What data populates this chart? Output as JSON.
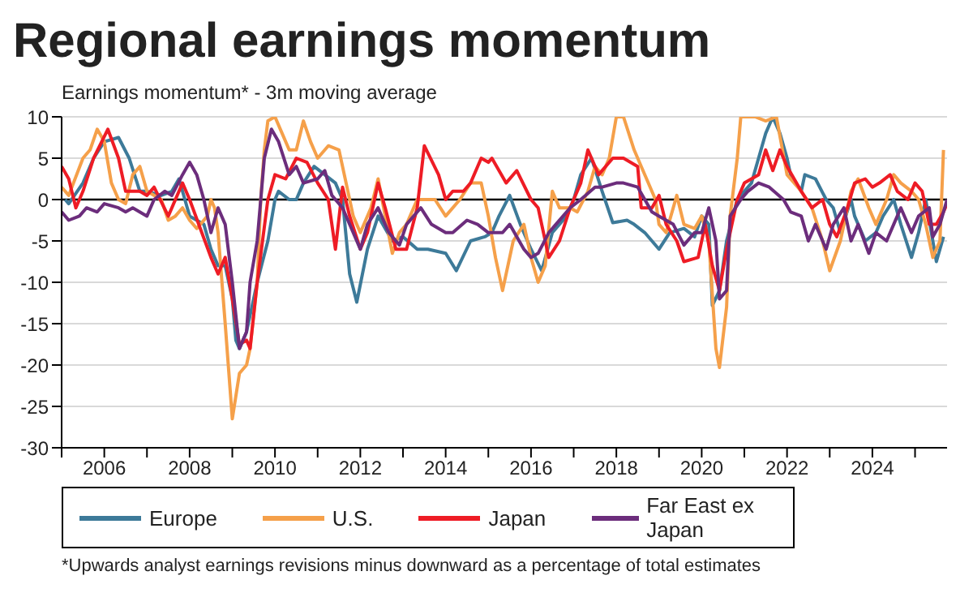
{
  "chart_data": {
    "type": "line",
    "title": "Regional earnings momentum",
    "subtitle": "Earnings momentum* - 3m moving average",
    "annotations": [
      "*Upwards analyst earnings revisions minus downward as a percentage of total estimates"
    ],
    "xlim": [
      "2005-01",
      "2025-10"
    ],
    "xticks": [
      {
        "value": "2005",
        "label": null
      },
      "2006",
      {
        "value": "2007",
        "label": null
      },
      "2008",
      {
        "value": "2009",
        "label": null
      },
      "2010",
      {
        "value": "2011",
        "label": null
      },
      "2012",
      {
        "value": "2013",
        "label": null
      },
      "2014",
      {
        "value": "2015",
        "label": null
      },
      "2016",
      {
        "value": "2017",
        "label": null
      },
      "2018",
      {
        "value": "2019",
        "label": null
      },
      "2020",
      {
        "value": "2021",
        "label": null
      },
      "2022",
      {
        "value": "2023",
        "label": null
      },
      "2024",
      {
        "value": "2025",
        "label": null
      }
    ],
    "ylim": [
      -30,
      10
    ],
    "yticks": [
      10,
      5,
      0,
      -5,
      -10,
      -15,
      -20,
      -25,
      -30
    ],
    "grid": "y",
    "legend": "bottom",
    "marker": "none",
    "line_style": "solid",
    "ref_lines": [
      {
        "axis": "y",
        "value": 0,
        "color": "#000000"
      }
    ],
    "series": [
      {
        "name": "Europe",
        "color": "#3d7a99",
        "x": [
          "2005-02",
          "2005-03",
          "2005-07",
          "2005-10",
          "2006-01",
          "2006-05",
          "2006-08",
          "2006-11",
          "2007-01",
          "2007-05",
          "2007-08",
          "2007-10",
          "2008-01",
          "2008-05",
          "2008-07",
          "2008-09",
          "2008-11",
          "2009-01",
          "2009-02",
          "2009-03",
          "2009-05",
          "2009-07",
          "2009-08",
          "2009-11",
          "2010-01",
          "2010-02",
          "2010-05",
          "2010-07",
          "2010-09",
          "2010-12",
          "2011-03",
          "2011-06",
          "2011-08",
          "2011-10",
          "2011-12",
          "2012-03",
          "2012-06",
          "2012-10",
          "2013-01",
          "2013-05",
          "2013-08",
          "2014-01",
          "2014-04",
          "2014-08",
          "2014-12",
          "2015-02",
          "2015-04",
          "2015-07",
          "2015-10",
          "2016-01",
          "2016-04",
          "2016-07",
          "2016-11",
          "2017-01",
          "2017-03",
          "2017-06",
          "2017-09",
          "2017-12",
          "2018-04",
          "2018-06",
          "2018-09",
          "2019-01",
          "2019-04",
          "2019-08",
          "2019-11",
          "2020-01",
          "2020-03",
          "2020-04",
          "2020-06",
          "2020-08",
          "2020-11",
          "2021-03",
          "2021-05",
          "2021-07",
          "2021-09",
          "2021-11",
          "2022-01",
          "2022-02",
          "2022-05",
          "2022-06",
          "2022-09",
          "2022-12",
          "2023-02",
          "2023-04",
          "2023-07",
          "2023-08",
          "2023-11",
          "2024-02",
          "2024-04",
          "2024-07",
          "2024-09",
          "2024-12",
          "2025-02",
          "2025-04",
          "2025-06",
          "2025-07",
          "2025-09"
        ],
        "values": [
          0,
          -0.5,
          2,
          5,
          7,
          7.5,
          5,
          1,
          1,
          0.5,
          1,
          2.5,
          -2,
          -3,
          -6,
          -8,
          -8,
          -12,
          -17,
          -18,
          -16,
          -12,
          -10,
          -5,
          0,
          1,
          0,
          0,
          2,
          4,
          3,
          2,
          0,
          -9,
          -12.4,
          -6,
          -2,
          -5,
          -4.5,
          -6,
          -6,
          -6.5,
          -8.6,
          -5,
          -4.5,
          -4,
          -2,
          0.5,
          -3,
          -6,
          -8.6,
          -4,
          -2,
          0,
          3,
          5,
          1,
          -2.8,
          -2.5,
          -3,
          -4,
          -6,
          -4,
          -3.5,
          -4.5,
          -2,
          -3,
          -12.8,
          -11,
          -5,
          0,
          2,
          5,
          8,
          10,
          8,
          5,
          3,
          1,
          3,
          2.5,
          0,
          -1,
          -4,
          0,
          -2,
          -5,
          -4,
          -2,
          0,
          -3,
          -7,
          -4,
          0,
          -5,
          -7.5,
          -4.5
        ]
      },
      {
        "name": "U.S.",
        "color": "#f5a04a",
        "x": [
          "2005-01",
          "2005-03",
          "2005-07",
          "2005-09",
          "2005-11",
          "2006-01",
          "2006-03",
          "2006-05",
          "2006-07",
          "2006-09",
          "2006-11",
          "2007-01",
          "2007-05",
          "2007-07",
          "2007-09",
          "2007-11",
          "2008-01",
          "2008-03",
          "2008-06",
          "2008-07",
          "2008-08",
          "2008-09",
          "2008-11",
          "2009-01",
          "2009-03",
          "2009-05",
          "2009-06",
          "2009-08",
          "2009-09",
          "2009-10",
          "2009-11",
          "2010-01",
          "2010-03",
          "2010-05",
          "2010-07",
          "2010-09",
          "2010-11",
          "2011-01",
          "2011-04",
          "2011-07",
          "2011-09",
          "2011-11",
          "2012-01",
          "2012-04",
          "2012-06",
          "2012-08",
          "2012-10",
          "2012-12",
          "2013-02",
          "2013-05",
          "2013-07",
          "2013-10",
          "2014-01",
          "2014-05",
          "2014-08",
          "2014-11",
          "2015-01",
          "2015-03",
          "2015-05",
          "2015-08",
          "2015-11",
          "2016-01",
          "2016-03",
          "2016-05",
          "2016-07",
          "2016-09",
          "2016-12",
          "2017-02",
          "2017-05",
          "2017-07",
          "2017-09",
          "2017-11",
          "2018-01",
          "2018-03",
          "2018-06",
          "2018-08",
          "2018-12",
          "2019-01",
          "2019-03",
          "2019-06",
          "2019-08",
          "2019-11",
          "2020-01",
          "2020-03",
          "2020-05",
          "2020-06",
          "2020-08",
          "2020-09",
          "2020-11",
          "2020-12",
          "2021-04",
          "2021-07",
          "2021-10",
          "2022-01",
          "2022-05",
          "2022-08",
          "2022-11",
          "2023-01",
          "2023-04",
          "2023-07",
          "2023-09",
          "2023-12",
          "2024-02",
          "2024-05",
          "2024-07",
          "2024-09",
          "2024-12",
          "2025-02",
          "2025-04",
          "2025-06",
          "2025-08",
          "2025-09"
        ],
        "values": [
          1.5,
          0.5,
          5,
          6,
          8.5,
          7,
          2,
          0,
          -0.5,
          3,
          4,
          1,
          0,
          -2.5,
          -2,
          -1,
          -2.5,
          -3.5,
          -2,
          0,
          -1,
          -4,
          -15,
          -26.5,
          -21,
          -20,
          -18,
          -10,
          0,
          6,
          9.5,
          10,
          8,
          6,
          6,
          9.5,
          7,
          5,
          6.5,
          6,
          2,
          -2,
          -4,
          -1,
          2.5,
          -2,
          -6.5,
          -4,
          -3,
          0,
          0,
          0,
          -2,
          0,
          2,
          2,
          -2,
          -7,
          -11,
          -5,
          -3,
          -7,
          -10,
          -8,
          1,
          -1,
          -1,
          -1.5,
          1,
          4,
          3,
          5,
          10,
          10,
          6,
          4,
          0,
          -3,
          -4,
          0.5,
          -3,
          -3.5,
          -2,
          -5,
          -18,
          -20.3,
          -13,
          -2,
          5,
          10,
          10,
          9.5,
          10,
          3,
          1,
          -1,
          -5,
          -8.6,
          -5,
          1,
          2.5,
          -1,
          -3,
          0,
          3,
          2,
          1,
          0,
          -3,
          -7,
          -5,
          6
        ]
      },
      {
        "name": "Japan",
        "color": "#ee1c25",
        "x": [
          "2005-01",
          "2005-03",
          "2005-05",
          "2005-07",
          "2005-10",
          "2006-02",
          "2006-05",
          "2006-07",
          "2006-11",
          "2007-01",
          "2007-03",
          "2007-07",
          "2007-11",
          "2008-01",
          "2008-04",
          "2008-07",
          "2008-09",
          "2008-11",
          "2009-01",
          "2009-03",
          "2009-05",
          "2009-06",
          "2009-08",
          "2009-11",
          "2010-01",
          "2010-04",
          "2010-07",
          "2010-10",
          "2011-01",
          "2011-04",
          "2011-06",
          "2011-08",
          "2011-10",
          "2012-01",
          "2012-03",
          "2012-06",
          "2012-08",
          "2012-11",
          "2013-02",
          "2013-05",
          "2013-07",
          "2013-11",
          "2014-01",
          "2014-03",
          "2014-06",
          "2014-08",
          "2014-11",
          "2015-01",
          "2015-02",
          "2015-06",
          "2015-09",
          "2016-01",
          "2016-03",
          "2016-06",
          "2016-09",
          "2016-12",
          "2017-01",
          "2017-03",
          "2017-05",
          "2017-08",
          "2017-12",
          "2018-03",
          "2018-07",
          "2018-08",
          "2018-11",
          "2019-01",
          "2019-03",
          "2019-06",
          "2019-08",
          "2019-12",
          "2020-02",
          "2020-04",
          "2020-06",
          "2020-08",
          "2020-11",
          "2021-01",
          "2021-05",
          "2021-07",
          "2021-09",
          "2021-11",
          "2022-01",
          "2022-05",
          "2022-08",
          "2022-11",
          "2023-01",
          "2023-03",
          "2023-06",
          "2023-08",
          "2023-11",
          "2024-01",
          "2024-03",
          "2024-06",
          "2024-08",
          "2024-11",
          "2025-01",
          "2025-03",
          "2025-05",
          "2025-07",
          "2025-09",
          "2025-10"
        ],
        "values": [
          4,
          2.5,
          -1,
          1,
          5,
          8.5,
          5,
          1,
          1,
          0.5,
          1.5,
          -2,
          2,
          0,
          -3.5,
          -7,
          -9,
          -7,
          -12,
          -17.5,
          -17,
          -18,
          -10,
          0,
          3,
          2.5,
          5,
          4.5,
          2,
          0,
          -6,
          1.5,
          -2,
          -6,
          -4,
          2,
          -1,
          -6,
          -6,
          -1,
          6.5,
          3,
          0,
          1,
          1,
          2,
          5,
          4.5,
          5,
          2,
          3.5,
          0,
          -1,
          -7,
          -5,
          -1,
          0,
          2,
          6,
          3,
          5,
          5,
          4,
          -1,
          -1,
          0.5,
          -3,
          -5,
          -7.5,
          -7,
          -3,
          -8,
          -11,
          -6,
          0,
          2,
          3,
          6,
          3.5,
          6,
          4,
          1,
          -1,
          0,
          -3,
          -4.5,
          -1,
          2,
          2.5,
          1.5,
          2,
          3,
          1,
          0,
          2,
          1,
          -3,
          -3,
          -1.5,
          -0.5
        ]
      },
      {
        "name": "Far East ex Japan",
        "color": "#6c2d7c",
        "x": [
          "2005-01",
          "2005-03",
          "2005-06",
          "2005-08",
          "2005-11",
          "2006-01",
          "2006-05",
          "2006-07",
          "2006-09",
          "2007-01",
          "2007-03",
          "2007-06",
          "2007-08",
          "2007-11",
          "2008-01",
          "2008-03",
          "2008-05",
          "2008-07",
          "2008-09",
          "2008-11",
          "2009-01",
          "2009-03",
          "2009-05",
          "2009-06",
          "2009-08",
          "2009-10",
          "2009-12",
          "2010-02",
          "2010-05",
          "2010-07",
          "2010-09",
          "2011-01",
          "2011-03",
          "2011-05",
          "2011-08",
          "2011-11",
          "2012-01",
          "2012-03",
          "2012-06",
          "2012-09",
          "2012-12",
          "2013-02",
          "2013-06",
          "2013-09",
          "2014-01",
          "2014-03",
          "2014-07",
          "2014-10",
          "2015-01",
          "2015-05",
          "2015-07",
          "2015-11",
          "2016-01",
          "2016-03",
          "2016-06",
          "2016-08",
          "2016-12",
          "2017-03",
          "2017-07",
          "2017-09",
          "2018-01",
          "2018-03",
          "2018-07",
          "2018-11",
          "2019-01",
          "2019-05",
          "2019-08",
          "2019-11",
          "2020-01",
          "2020-03",
          "2020-05",
          "2020-06",
          "2020-08",
          "2020-09",
          "2020-12",
          "2021-02",
          "2021-05",
          "2021-08",
          "2021-12",
          "2022-02",
          "2022-05",
          "2022-07",
          "2022-09",
          "2022-12",
          "2023-02",
          "2023-05",
          "2023-07",
          "2023-09",
          "2023-12",
          "2024-02",
          "2024-05",
          "2024-07",
          "2024-09",
          "2024-12",
          "2025-02",
          "2025-05",
          "2025-06",
          "2025-08",
          "2025-10"
        ],
        "values": [
          -1.5,
          -2.5,
          -2,
          -1,
          -1.5,
          -0.5,
          -1,
          -1.5,
          -1,
          -2,
          0,
          1,
          0.5,
          3,
          4.5,
          3,
          0,
          -4,
          -1,
          -3,
          -10,
          -18,
          -16,
          -10,
          -5,
          5,
          8.5,
          7,
          3,
          4,
          2,
          2.5,
          3.5,
          0.5,
          -1,
          -4,
          -6,
          -3,
          -1,
          -4,
          -5.5,
          -3,
          -1,
          -3,
          -4,
          -4,
          -2.5,
          -3,
          -4,
          -4,
          -3,
          -6,
          -7,
          -6.5,
          -4,
          -3,
          -1,
          0,
          1.5,
          1.5,
          2,
          2,
          1.5,
          -1.5,
          -2,
          -3,
          -5.5,
          -4,
          -4,
          -1,
          -5,
          -12,
          -11,
          -2,
          0,
          1,
          2,
          1.5,
          0,
          -1.5,
          -2,
          -5,
          -3,
          -6,
          -3,
          -1,
          -5,
          -3,
          -6.5,
          -4,
          -5,
          -3,
          -1,
          -4,
          -2,
          -1,
          -4.5,
          -3,
          0
        ]
      }
    ]
  }
}
